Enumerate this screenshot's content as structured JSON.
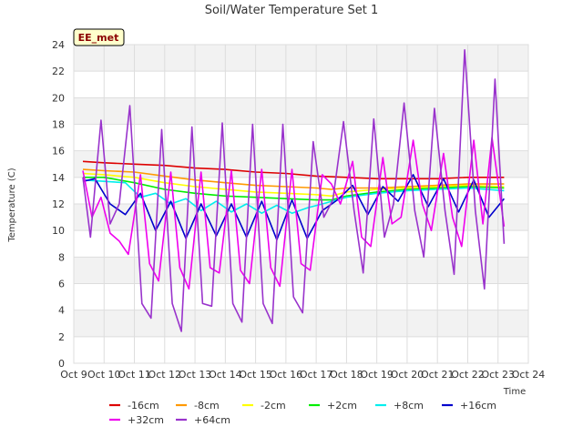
{
  "chart_data": {
    "type": "line",
    "title": "Soil/Water Temperature Set 1",
    "xlabel": "Time",
    "ylabel": "Temperature (C)",
    "badge": "EE_met",
    "ylim": [
      0,
      24
    ],
    "yticks": [
      0,
      2,
      4,
      6,
      8,
      10,
      12,
      14,
      16,
      18,
      20,
      22,
      24
    ],
    "xlim": [
      9,
      24
    ],
    "xticks": [
      {
        "v": 9,
        "label": "Oct 9"
      },
      {
        "v": 10,
        "label": "Oct 10"
      },
      {
        "v": 11,
        "label": "Oct 11"
      },
      {
        "v": 12,
        "label": "Oct 12"
      },
      {
        "v": 13,
        "label": "Oct 13"
      },
      {
        "v": 14,
        "label": "Oct 14"
      },
      {
        "v": 15,
        "label": "Oct 15"
      },
      {
        "v": 16,
        "label": "Oct 16"
      },
      {
        "v": 17,
        "label": "Oct 17"
      },
      {
        "v": 18,
        "label": "Oct 18"
      },
      {
        "v": 19,
        "label": "Oct 19"
      },
      {
        "v": 20,
        "label": "Oct 20"
      },
      {
        "v": 21,
        "label": "Oct 21"
      },
      {
        "v": 22,
        "label": "Oct 22"
      },
      {
        "v": 23,
        "label": "Oct 23"
      },
      {
        "v": 24,
        "label": "Oct 24"
      }
    ],
    "grid": true,
    "legend_position": "bottom",
    "series": [
      {
        "name": "-16cm",
        "color": "#dd0000",
        "x": [
          9.3,
          10,
          11,
          12,
          13,
          14,
          15,
          16,
          17,
          18,
          19,
          20,
          21,
          22,
          23.2
        ],
        "y": [
          15.2,
          15.1,
          15.0,
          14.9,
          14.7,
          14.6,
          14.4,
          14.3,
          14.1,
          14.0,
          13.9,
          13.9,
          13.9,
          14.0,
          14.0
        ]
      },
      {
        "name": "-8cm",
        "color": "#ff9900",
        "x": [
          9.3,
          10,
          11,
          12,
          13,
          14,
          15,
          16,
          17,
          17.5,
          18,
          19,
          20,
          21,
          22,
          23.2
        ],
        "y": [
          14.6,
          14.5,
          14.4,
          14.1,
          13.8,
          13.6,
          13.4,
          13.3,
          13.2,
          13.1,
          13.2,
          13.2,
          13.3,
          13.4,
          13.5,
          13.5
        ]
      },
      {
        "name": "-2cm",
        "color": "#ffff00",
        "x": [
          9.3,
          10,
          11,
          12,
          13,
          14,
          15,
          16,
          17,
          17.5,
          18,
          19,
          20,
          21,
          22,
          23.2
        ],
        "y": [
          14.3,
          14.2,
          14.0,
          13.6,
          13.3,
          13.1,
          12.9,
          12.8,
          12.7,
          12.6,
          12.9,
          13.1,
          13.2,
          13.3,
          13.4,
          13.3
        ]
      },
      {
        "name": "+2cm",
        "color": "#00ee00",
        "x": [
          9.3,
          10,
          11,
          12,
          13,
          14,
          15,
          16,
          17,
          17.5,
          18,
          19,
          20,
          21,
          22,
          23.2
        ],
        "y": [
          14.0,
          14.0,
          13.6,
          13.1,
          12.8,
          12.6,
          12.5,
          12.4,
          12.3,
          12.3,
          12.6,
          12.9,
          13.1,
          13.2,
          13.3,
          13.2
        ]
      },
      {
        "name": "+8cm",
        "color": "#00eeee",
        "x": [
          9.3,
          10,
          10.7,
          11.2,
          11.7,
          12.2,
          12.7,
          13.2,
          13.7,
          14.2,
          14.7,
          15.2,
          15.7,
          16.2,
          16.7,
          17.2,
          18,
          19,
          20,
          21,
          22,
          23.2
        ],
        "y": [
          13.8,
          13.7,
          13.6,
          12.5,
          12.8,
          12.0,
          12.4,
          11.5,
          12.2,
          11.4,
          12.0,
          11.3,
          11.9,
          11.3,
          11.7,
          12.0,
          12.5,
          12.8,
          13.0,
          13.1,
          13.2,
          13.0
        ]
      },
      {
        "name": "+16cm",
        "color": "#0000cc",
        "x": [
          9.3,
          9.7,
          10.2,
          10.7,
          11.2,
          11.7,
          12.2,
          12.7,
          13.2,
          13.7,
          14.2,
          14.7,
          15.2,
          15.7,
          16.2,
          16.7,
          17.2,
          17.7,
          18.2,
          18.7,
          19.2,
          19.7,
          20.2,
          20.7,
          21.2,
          21.7,
          22.2,
          22.7,
          23.2
        ],
        "y": [
          13.7,
          13.9,
          12.0,
          11.2,
          12.8,
          10.0,
          12.2,
          9.4,
          12.0,
          9.6,
          12.0,
          9.5,
          12.2,
          9.3,
          12.3,
          9.4,
          11.5,
          12.3,
          13.4,
          11.2,
          13.3,
          12.2,
          14.2,
          11.8,
          13.9,
          11.4,
          13.8,
          11.0,
          12.4
        ]
      },
      {
        "name": "+32cm",
        "color": "#ee00ee",
        "x": [
          9.3,
          9.6,
          9.9,
          10.2,
          10.5,
          10.8,
          11.2,
          11.5,
          11.8,
          12.2,
          12.5,
          12.8,
          13.2,
          13.5,
          13.8,
          14.2,
          14.5,
          14.8,
          15.2,
          15.5,
          15.8,
          16.2,
          16.5,
          16.8,
          17.2,
          17.5,
          17.8,
          18.2,
          18.5,
          18.8,
          19.2,
          19.5,
          19.8,
          20.2,
          20.5,
          20.8,
          21.2,
          21.5,
          21.8,
          22.2,
          22.5,
          22.8,
          23.2
        ],
        "y": [
          14.5,
          11.0,
          12.5,
          9.8,
          9.2,
          8.2,
          14.2,
          7.5,
          6.2,
          14.4,
          7.2,
          5.6,
          14.4,
          7.2,
          6.8,
          14.5,
          7.0,
          6.0,
          14.6,
          7.2,
          5.8,
          14.6,
          7.5,
          7.0,
          14.2,
          13.5,
          12.0,
          15.2,
          9.5,
          8.8,
          15.5,
          10.5,
          11.0,
          16.8,
          12.0,
          10.0,
          15.8,
          11.0,
          8.8,
          16.8,
          10.5,
          17.0,
          10.3
        ]
      },
      {
        "name": "+64cm",
        "color": "#9933cc",
        "x": [
          9.3,
          9.55,
          9.9,
          10.2,
          10.5,
          10.85,
          11.25,
          11.55,
          11.9,
          12.25,
          12.55,
          12.9,
          13.25,
          13.55,
          13.9,
          14.25,
          14.55,
          14.9,
          15.25,
          15.55,
          15.9,
          16.25,
          16.55,
          16.9,
          17.25,
          17.55,
          17.9,
          18.25,
          18.55,
          18.9,
          19.25,
          19.55,
          19.9,
          20.25,
          20.55,
          20.9,
          21.25,
          21.55,
          21.9,
          22.25,
          22.55,
          22.9,
          23.2
        ],
        "y": [
          14.0,
          9.5,
          18.3,
          10.5,
          12.0,
          19.4,
          4.5,
          3.4,
          17.6,
          4.5,
          2.4,
          17.8,
          4.5,
          4.3,
          18.1,
          4.5,
          3.1,
          18.0,
          4.5,
          3.0,
          18.0,
          5.0,
          3.8,
          16.7,
          11.0,
          12.3,
          18.2,
          11.5,
          6.8,
          18.4,
          9.5,
          12.0,
          19.6,
          11.5,
          8.0,
          19.2,
          11.5,
          6.7,
          23.6,
          11.5,
          5.6,
          21.4,
          9.0
        ]
      }
    ]
  }
}
